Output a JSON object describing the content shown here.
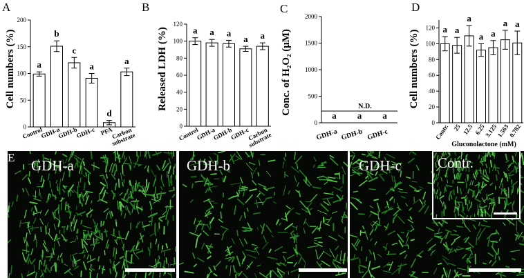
{
  "panel_letters": [
    "A",
    "B",
    "C",
    "D",
    "E"
  ],
  "chart_data": [
    {
      "type": "bar",
      "panel": "A",
      "ylabel": "Cell numbers (%)",
      "ylim": [
        0,
        200
      ],
      "yticks": [
        0,
        50,
        100,
        150,
        200
      ],
      "categories": [
        "Control",
        "GDH-a",
        "GDH-b",
        "GDH-c",
        "PFA",
        "Carbon substrate"
      ],
      "values": [
        99,
        151,
        120,
        91,
        8,
        103
      ],
      "errors": [
        4,
        10,
        10,
        9,
        4,
        7
      ],
      "significance": [
        "a",
        "b",
        "c",
        "a",
        "d",
        "a"
      ]
    },
    {
      "type": "bar",
      "panel": "B",
      "ylabel": "Released LDH (%)",
      "ylim": [
        0,
        120
      ],
      "yticks": [
        0,
        20,
        40,
        60,
        80,
        100,
        120
      ],
      "categories": [
        "Control",
        "GDH-a",
        "GDH-b",
        "GDH-c",
        "Carbon substrate"
      ],
      "values": [
        100,
        98,
        97,
        91,
        94
      ],
      "errors": [
        4,
        4,
        4,
        3,
        4
      ],
      "significance": [
        "a",
        "a",
        "a",
        "a",
        "a"
      ]
    },
    {
      "type": "bar",
      "panel": "C",
      "ylabel": "Conc. of H₂O₂ (μM)",
      "ylim": [
        0,
        2000
      ],
      "yticks": [
        0,
        500,
        1000,
        1500,
        2000
      ],
      "categories": [
        "GDH-a",
        "GDH-b",
        "GDH-c"
      ],
      "values": [
        0,
        0,
        0
      ],
      "significance": [
        "a",
        "a",
        "a"
      ],
      "annotation": "N.D."
    },
    {
      "type": "bar",
      "panel": "D",
      "ylabel": "Cell numbers (%)",
      "xlabel": "Gluconolactone (mM)",
      "ylim": [
        0,
        130
      ],
      "yticks": [
        0,
        20,
        40,
        60,
        80,
        100,
        120
      ],
      "categories": [
        "Contr.",
        "25",
        "12.5",
        "6.25",
        "3.125",
        "1.563",
        "0.782"
      ],
      "values": [
        100,
        98,
        110,
        92,
        95,
        105,
        101
      ],
      "errors": [
        9,
        10,
        13,
        8,
        9,
        12,
        15
      ],
      "significance": [
        "a",
        "a",
        "a",
        "a",
        "a",
        "a",
        "a"
      ]
    }
  ],
  "micrographs": {
    "panels": [
      "GDH-a",
      "GDH-b",
      "GDH-c"
    ],
    "inset_label": "Contr."
  }
}
